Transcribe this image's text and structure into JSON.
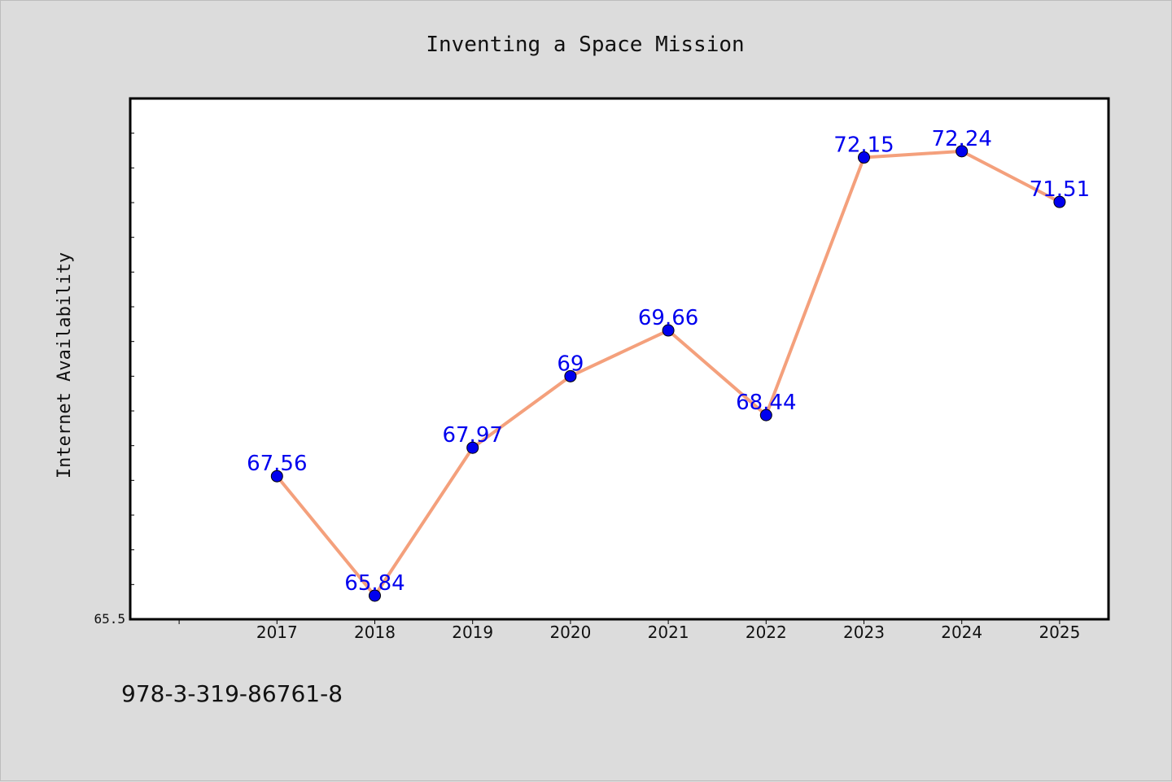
{
  "chart_data": {
    "type": "line",
    "title": "Inventing a Space Mission",
    "xlabel": "",
    "ylabel": "Internet Availability",
    "categories": [
      "2017",
      "2018",
      "2019",
      "2020",
      "2021",
      "2022",
      "2023",
      "2024",
      "2025"
    ],
    "series": [
      {
        "values": [
          67.56,
          65.84,
          67.97,
          69,
          69.66,
          68.44,
          72.15,
          72.24,
          71.51
        ],
        "data_labels": [
          "67.56",
          "65.84",
          "67.97",
          "69",
          "69.66",
          "68.44",
          "72.15",
          "72.24",
          "71.51"
        ],
        "line_color": "#f4a07c",
        "marker_color": "#0000ee"
      }
    ],
    "y_tick_labels": [
      {
        "value": 65.5,
        "label": "65.5"
      }
    ],
    "ylim": [
      65.5,
      73.0
    ],
    "xlim": [
      2015.5,
      2025.5
    ],
    "minor_tick_step": 0.5,
    "grid": false,
    "legend": "none",
    "label_color": "#0000ee"
  },
  "footer": {
    "isbn": "978-3-319-86761-8"
  }
}
